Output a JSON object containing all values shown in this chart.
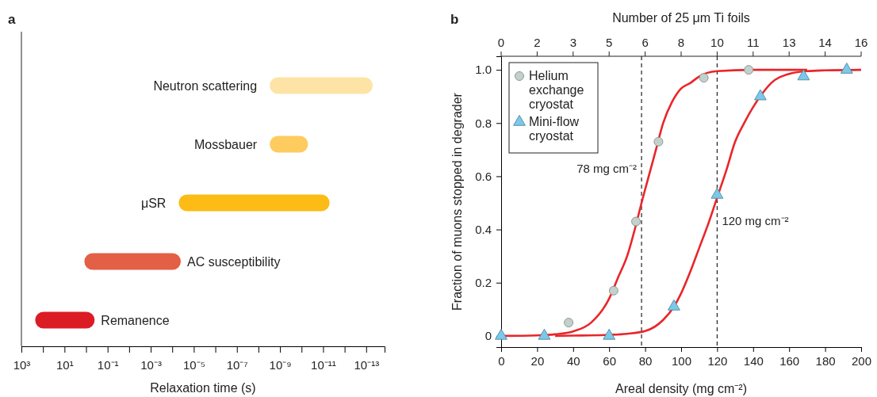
{
  "chart_data": [
    {
      "type": "bar",
      "title": "a",
      "orientation": "horizontal",
      "log": "x",
      "xlabel": "Relaxation time (s)",
      "categories": [
        "Neutron scattering",
        "Mossbauer",
        "μSR",
        "AC susceptibility",
        "Remanence"
      ],
      "base": [
        3e-09,
        3e-09,
        5e-05,
        1.2,
        230
      ],
      "values": [
        -2.99995e-09,
        -2.95e-09,
        -4.9999995e-05,
        -1.19996,
        -229.6
      ],
      "colors": [
        "#fee3a6",
        "#fecb5e",
        "#fcbb15",
        "#e35f45",
        "#dc1c24"
      ],
      "xlim": [
        1000,
        1.4e-14
      ],
      "xticks": [
        {
          "value": 1000,
          "label": "10³"
        },
        {
          "value": 100,
          "label": null
        },
        {
          "value": 10,
          "label": "10¹"
        },
        {
          "value": 1,
          "label": null
        },
        {
          "value": 0.1,
          "label": "10⁻¹"
        },
        {
          "value": 0.01,
          "label": null
        },
        {
          "value": 0.001,
          "label": "10⁻³"
        },
        {
          "value": 0.0001,
          "label": null
        },
        {
          "value": 1e-05,
          "label": "10⁻⁵"
        },
        {
          "value": 1e-06,
          "label": null
        },
        {
          "value": 1e-07,
          "label": "10⁻⁷"
        },
        {
          "value": 1e-08,
          "label": null
        },
        {
          "value": 1e-09,
          "label": "10⁻⁹"
        },
        {
          "value": 1e-10,
          "label": null
        },
        {
          "value": 1e-11,
          "label": "10⁻¹¹"
        },
        {
          "value": 1e-12,
          "label": null
        },
        {
          "value": 1e-13,
          "label": "10⁻¹³"
        }
      ]
    },
    {
      "type": "scatter",
      "title": "b",
      "xlabel": "Areal density (mg cm⁻²)",
      "x2label": "Number of 25 μm Ti foils",
      "ylabel": "Fraction of muons stopped in degrader",
      "xlim": [
        0,
        200
      ],
      "xticks": [
        0,
        20,
        40,
        60,
        80,
        100,
        120,
        140,
        160,
        180,
        200
      ],
      "annotations": [
        {
          "text": "0",
          "x": 0
        },
        {
          "text": "2",
          "x": 20
        },
        {
          "text": "3",
          "x": 40
        },
        {
          "text": "5",
          "x": 60
        },
        {
          "text": "6",
          "x": 80
        },
        {
          "text": "8",
          "x": 100
        },
        {
          "text": "10",
          "x": 120
        },
        {
          "text": "11",
          "x": 140
        },
        {
          "text": "13",
          "x": 160
        },
        {
          "text": "14",
          "x": 180
        },
        {
          "text": "16",
          "x": 200
        }
      ],
      "ylim": [
        -0.042,
        1.051
      ],
      "yticks": [
        0,
        0.2,
        0.4,
        0.6,
        0.8,
        {
          "value": 1,
          "label": "1.0"
        }
      ],
      "legend": "top left",
      "ref_lines": [
        {
          "axis": "x",
          "value": 78,
          "label": "78 mg cm⁻²",
          "line_style": "dashed",
          "color": "#222222"
        },
        {
          "axis": "x",
          "value": 120,
          "label": "120 mg cm⁻²",
          "line_style": "dashed",
          "color": "#222222"
        }
      ],
      "series": [
        {
          "type": "line",
          "color": "#e8262a",
          "line_style": "solid",
          "marker": "none",
          "x": [
            0,
            20,
            30,
            40,
            50,
            60,
            65,
            70,
            75,
            78,
            82,
            86,
            90,
            95,
            100,
            105,
            110,
            120,
            140,
            170
          ],
          "values": [
            0,
            0.002,
            0.006,
            0.017,
            0.05,
            0.14,
            0.22,
            0.3,
            0.42,
            0.5,
            0.6,
            0.7,
            0.8,
            0.88,
            0.93,
            0.95,
            0.975,
            0.995,
            1.0,
            1.0
          ]
        },
        {
          "type": "line",
          "color": "#e8262a",
          "line_style": "solid",
          "marker": "none",
          "x": [
            30,
            40,
            60,
            70,
            80,
            90,
            96,
            100,
            105,
            110,
            115,
            120,
            125,
            130,
            135,
            140,
            145,
            150,
            160,
            170,
            180,
            200
          ],
          "values": [
            0,
            0.001,
            0.004,
            0.008,
            0.018,
            0.06,
            0.11,
            0.16,
            0.24,
            0.33,
            0.42,
            0.52,
            0.62,
            0.73,
            0.8,
            0.86,
            0.91,
            0.95,
            0.985,
            0.995,
            0.998,
            1.0
          ]
        },
        {
          "type": "scatter",
          "name": "Helium exchange cryostat",
          "color": "#c3d1cd",
          "marker": "circle",
          "x": [
            37.5,
            62.5,
            74.9,
            87.4,
            112.6,
            137.5
          ],
          "values": [
            0.05,
            0.17,
            0.43,
            0.73,
            0.97,
            1.0
          ]
        },
        {
          "type": "scatter",
          "name": "Mini-flow cryostat",
          "color": "#7cc8ea",
          "marker": "triangle",
          "x": [
            0,
            24,
            60,
            96,
            120,
            144,
            168,
            192
          ],
          "values": [
            0,
            0,
            0,
            0.11,
            0.53,
            0.9,
            0.975,
            1.0
          ]
        }
      ]
    }
  ]
}
